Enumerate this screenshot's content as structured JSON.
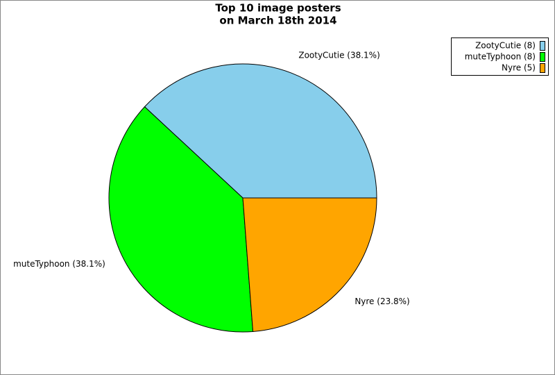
{
  "chart_data": {
    "type": "pie",
    "title": [
      "Top 10 image posters",
      "on March 18th 2014"
    ],
    "categories": [
      "ZootyCutie",
      "muteTyphoon",
      "Nyre"
    ],
    "values": [
      38.1,
      38.1,
      23.8
    ],
    "value_labels": [
      "ZootyCutie (38.1%)",
      "muteTyphoon (38.1%)",
      "Nyre (23.8%)"
    ],
    "legend_labels": [
      "ZootyCutie (8)",
      "muteTyphoon (8)",
      "Nyre (5)"
    ],
    "colors": [
      "#87ceeb",
      "#00ff00",
      "#ffa500"
    ],
    "legend": "upper right"
  }
}
